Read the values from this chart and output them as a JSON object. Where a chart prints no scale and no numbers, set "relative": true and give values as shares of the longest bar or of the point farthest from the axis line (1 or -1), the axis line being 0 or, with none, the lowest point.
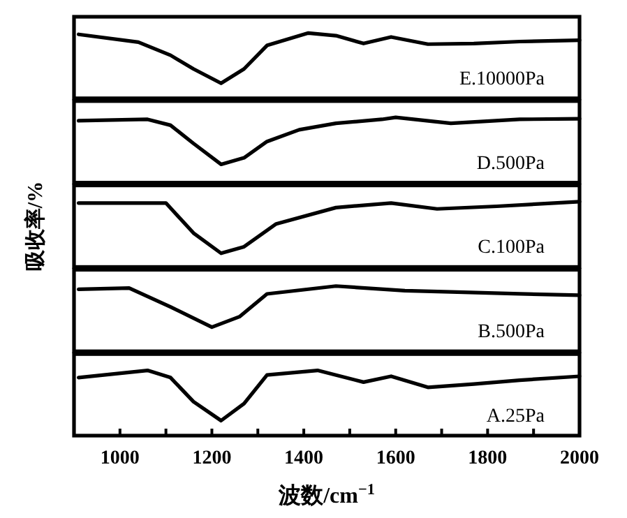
{
  "chart_data": [
    {
      "type": "line",
      "relative": true,
      "xlim": [
        900,
        2000
      ],
      "tick_labels": false,
      "series": [
        {
          "name": "E.10000Pa",
          "color": "#000000",
          "x": [
            910,
            1040,
            1110,
            1160,
            1220,
            1270,
            1320,
            1410,
            1470,
            1530,
            1590,
            1670,
            1770,
            1870,
            2000
          ],
          "values": [
            0.98,
            0.86,
            0.66,
            0.45,
            0.23,
            0.45,
            0.81,
            1,
            0.96,
            0.84,
            0.94,
            0.83,
            0.84,
            0.87,
            0.89
          ]
        }
      ]
    },
    {
      "type": "line",
      "relative": true,
      "xlim": [
        900,
        2000
      ],
      "tick_labels": false,
      "series": [
        {
          "name": "D.500Pa",
          "color": "#000000",
          "x": [
            910,
            1060,
            1110,
            1160,
            1220,
            1270,
            1320,
            1390,
            1470,
            1570,
            1600,
            1720,
            1870,
            2000
          ],
          "values": [
            0.95,
            0.97,
            0.88,
            0.6,
            0.28,
            0.38,
            0.63,
            0.81,
            0.91,
            0.97,
            1,
            0.91,
            0.97,
            0.98
          ]
        }
      ]
    },
    {
      "type": "line",
      "relative": true,
      "xlim": [
        900,
        2000
      ],
      "tick_labels": false,
      "ylabel": "吸收率/%",
      "series": [
        {
          "name": "C.100Pa",
          "color": "#000000",
          "x": [
            910,
            1100,
            1160,
            1220,
            1270,
            1340,
            1470,
            1590,
            1690,
            1820,
            2000
          ],
          "values": [
            0.98,
            0.98,
            0.52,
            0.21,
            0.31,
            0.66,
            0.91,
            0.98,
            0.89,
            0.93,
            1
          ]
        }
      ]
    },
    {
      "type": "line",
      "relative": true,
      "xlim": [
        900,
        2000
      ],
      "tick_labels": false,
      "series": [
        {
          "name": "B.500Pa",
          "color": "#000000",
          "x": [
            910,
            1020,
            1110,
            1200,
            1260,
            1320,
            1470,
            1620,
            1720,
            1870,
            2000
          ],
          "values": [
            0.95,
            0.97,
            0.68,
            0.37,
            0.53,
            0.88,
            1,
            0.93,
            0.91,
            0.88,
            0.86
          ]
        }
      ]
    },
    {
      "type": "line",
      "relative": true,
      "xlim": [
        900,
        2000
      ],
      "tick_labels": "x",
      "xlabel": "波数/cm$^{−1}$",
      "xticks": [
        1000,
        {
          "value": 1100,
          "label": null
        },
        1200,
        {
          "value": 1300,
          "label": null
        },
        1400,
        {
          "value": 1500,
          "label": null
        },
        1600,
        {
          "value": 1700,
          "label": null
        },
        1800,
        {
          "value": 1900,
          "label": null
        },
        2000
      ],
      "series": [
        {
          "name": "A.25Pa",
          "color": "#000000",
          "x": [
            910,
            1060,
            1110,
            1160,
            1220,
            1270,
            1320,
            1430,
            1530,
            1590,
            1670,
            1770,
            1870,
            2000
          ],
          "values": [
            0.89,
            1,
            0.89,
            0.52,
            0.23,
            0.49,
            0.93,
            1,
            0.82,
            0.91,
            0.74,
            0.79,
            0.85,
            0.91
          ]
        }
      ]
    }
  ]
}
